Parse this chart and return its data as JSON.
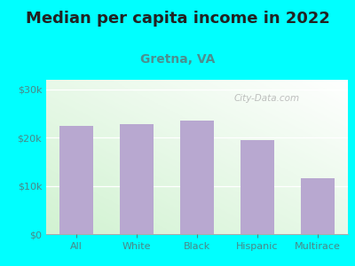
{
  "title": "Median per capita income in 2022",
  "subtitle": "Gretna, VA",
  "categories": [
    "All",
    "White",
    "Black",
    "Hispanic",
    "Multirace"
  ],
  "values": [
    22500,
    22800,
    23500,
    19500,
    11500
  ],
  "bar_color": "#b8a8d0",
  "title_fontsize": 13,
  "subtitle_fontsize": 10,
  "title_color": "#222222",
  "subtitle_color": "#4a9090",
  "tick_color": "#4a8888",
  "ylim": [
    0,
    32000
  ],
  "yticks": [
    0,
    10000,
    20000,
    30000
  ],
  "ytick_labels": [
    "$0",
    "$10k",
    "$20k",
    "$30k"
  ],
  "background_outer": "#00FFFF",
  "watermark": "City-Data.com"
}
